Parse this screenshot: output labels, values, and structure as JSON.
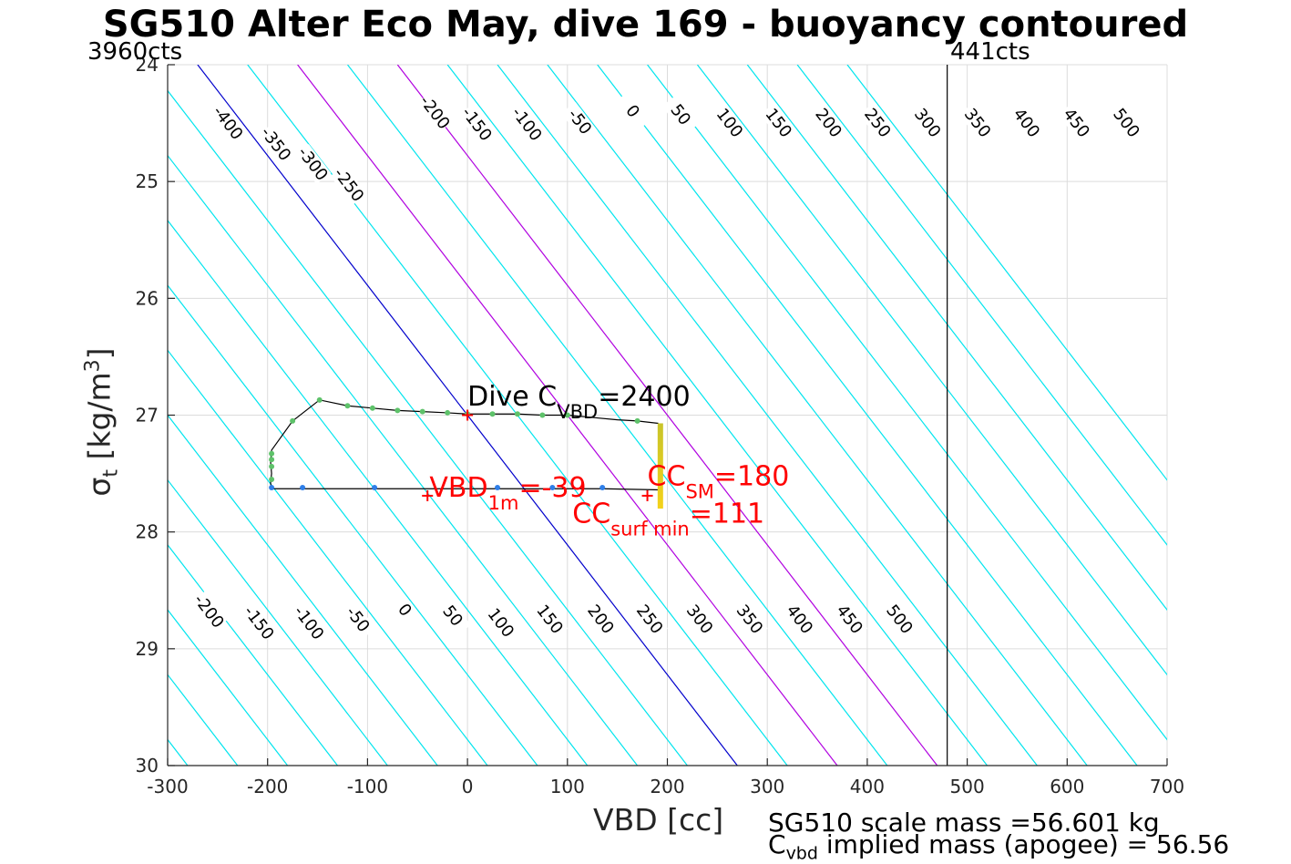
{
  "chart_data": {
    "type": "line",
    "title": "SG510 Alter Eco May, dive 169 - buoyancy contoured",
    "xlabel": "VBD [cc]",
    "ylabel": {
      "base": "σ",
      "sub": "t",
      "unit_pre": " [kg/m",
      "unit_sup": "3",
      "unit_post": "]"
    },
    "xlim": [
      -300,
      700
    ],
    "ylim": [
      24,
      30
    ],
    "y_reversed": true,
    "grid": true,
    "xticks": [
      -300,
      -200,
      -100,
      0,
      100,
      200,
      300,
      400,
      500,
      600,
      700
    ],
    "yticks": [
      24,
      25,
      26,
      27,
      28,
      29,
      30
    ],
    "contours": {
      "levels": [
        -550,
        -500,
        -450,
        -400,
        -350,
        -300,
        -250,
        -200,
        -150,
        -100,
        -50,
        0,
        50,
        100,
        150,
        200,
        250,
        300,
        350,
        400,
        450,
        500,
        550,
        600,
        650
      ],
      "ref_x": 0,
      "ref_y": 27,
      "slope_x_per_sigma": 90,
      "color": "#00e5ee",
      "zero_color": "#0000cc",
      "highlight_levels": [
        100,
        200
      ],
      "highlight_color": "#b000e0"
    },
    "contour_labels_top": [
      {
        "text": "-400",
        "x": -240,
        "y": 24.5
      },
      {
        "text": "-350",
        "x": -192,
        "y": 24.68
      },
      {
        "text": "-300",
        "x": -155,
        "y": 24.85
      },
      {
        "text": "-250",
        "x": -119,
        "y": 25.03
      },
      {
        "text": "-200",
        "x": -33,
        "y": 24.41
      },
      {
        "text": "-150",
        "x": 9,
        "y": 24.51
      },
      {
        "text": "-100",
        "x": 59,
        "y": 24.51
      },
      {
        "text": "-50",
        "x": 112,
        "y": 24.49
      },
      {
        "text": "0",
        "x": 165,
        "y": 24.4
      },
      {
        "text": "50",
        "x": 213,
        "y": 24.43
      },
      {
        "text": "100",
        "x": 262,
        "y": 24.5
      },
      {
        "text": "150",
        "x": 311,
        "y": 24.5
      },
      {
        "text": "200",
        "x": 361,
        "y": 24.5
      },
      {
        "text": "250",
        "x": 410,
        "y": 24.5
      },
      {
        "text": "300",
        "x": 460,
        "y": 24.5
      },
      {
        "text": "350",
        "x": 510,
        "y": 24.5
      },
      {
        "text": "400",
        "x": 559,
        "y": 24.5
      },
      {
        "text": "450",
        "x": 609,
        "y": 24.5
      },
      {
        "text": "500",
        "x": 659,
        "y": 24.5
      }
    ],
    "contour_labels_bottom": [
      {
        "text": "-200",
        "x": -259,
        "y": 28.68
      },
      {
        "text": "-150",
        "x": -209,
        "y": 28.78
      },
      {
        "text": "-100",
        "x": -159,
        "y": 28.78
      },
      {
        "text": "-50",
        "x": -110,
        "y": 28.75
      },
      {
        "text": "0",
        "x": -63,
        "y": 28.67
      },
      {
        "text": "50",
        "x": -15,
        "y": 28.72
      },
      {
        "text": "100",
        "x": 33,
        "y": 28.78
      },
      {
        "text": "150",
        "x": 82,
        "y": 28.75
      },
      {
        "text": "200",
        "x": 133,
        "y": 28.75
      },
      {
        "text": "250",
        "x": 182,
        "y": 28.75
      },
      {
        "text": "300",
        "x": 232,
        "y": 28.75
      },
      {
        "text": "350",
        "x": 282,
        "y": 28.75
      },
      {
        "text": "400",
        "x": 332,
        "y": 28.75
      },
      {
        "text": "450",
        "x": 382,
        "y": 28.75
      },
      {
        "text": "500",
        "x": 432,
        "y": 28.75
      }
    ],
    "vertical_line": {
      "x": 480,
      "color": "#000000"
    },
    "path": {
      "x": [
        191,
        170,
        150,
        125,
        100,
        75,
        50,
        25,
        0,
        -20,
        -45,
        -70,
        -95,
        -120,
        -148,
        -175,
        -196,
        -197,
        -196,
        -197,
        -196,
        -165,
        -93,
        30,
        85,
        135,
        193
      ],
      "y": [
        27.07,
        27.05,
        27.04,
        27.02,
        27.0,
        27.0,
        26.99,
        26.99,
        26.99,
        26.98,
        26.97,
        26.96,
        26.94,
        26.92,
        26.87,
        27.05,
        27.3,
        27.4,
        27.5,
        27.58,
        27.63,
        27.63,
        27.63,
        27.63,
        27.63,
        27.63,
        27.64
      ],
      "line_color": "#000000"
    },
    "descent_points": {
      "x": [
        170,
        100,
        75,
        50,
        25,
        0,
        -20,
        -45,
        -70,
        -95,
        -120,
        -148,
        -175,
        -196,
        -196,
        -196,
        -196
      ],
      "y": [
        27.05,
        27.0,
        27.0,
        26.99,
        26.99,
        26.99,
        26.98,
        26.97,
        26.96,
        26.94,
        26.92,
        26.87,
        27.05,
        27.33,
        27.38,
        27.44,
        27.55
      ],
      "color": "#5ec26a"
    },
    "ascent_points": {
      "x": [
        -196,
        -165,
        -93,
        30,
        85,
        135
      ],
      "y": [
        27.62,
        27.62,
        27.62,
        27.62,
        27.62,
        27.62
      ],
      "color": "#2f7fe8"
    },
    "surface_bar": {
      "x": 193,
      "y1": 27.07,
      "y2": 27.8,
      "color_top": "#c8c42a",
      "color_bottom": "#f4d21a"
    },
    "markers": [
      {
        "x": 0,
        "y": 27.0,
        "color": "#ff0000"
      },
      {
        "x": -40,
        "y": 27.69,
        "color": "#ff0000"
      },
      {
        "x": 180,
        "y": 27.69,
        "color": "#ff0000"
      }
    ],
    "annotations": [
      {
        "name": "dive-cvbd",
        "base": "Dive C",
        "sub": "VBD",
        "post": "=2400",
        "color": "#000000",
        "x": 0,
        "y": 26.92
      },
      {
        "name": "vbd-1m",
        "base": "VBD",
        "sub": "1m",
        "post": "=-39",
        "color": "#ff0000",
        "x": -38,
        "y": 27.7
      },
      {
        "name": "cc-sm",
        "base": "CC",
        "sub": "SM",
        "post": "=180",
        "color": "#ff0000",
        "x": 180,
        "y": 27.6
      },
      {
        "name": "cc-surf-min",
        "base": "CC",
        "sub": "surf min",
        "post": "=111",
        "color": "#ff0000",
        "x": 105,
        "y": 27.92
      }
    ]
  },
  "cts_left": "3960cts",
  "cts_right": "441cts",
  "footer": {
    "line1": "SG510 scale mass =56.601 kg",
    "line2_base": "C",
    "line2_sub": "vbd",
    "line2_post": " implied mass (apogee) = 56.56"
  }
}
